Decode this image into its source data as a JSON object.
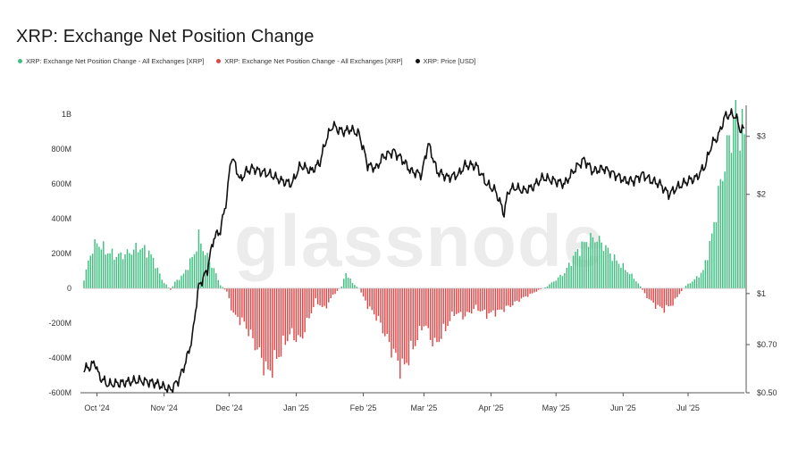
{
  "title": "XRP: Exchange Net Position Change",
  "watermark": "glassnode",
  "legend": [
    {
      "label": "XRP: Exchange Net Position Change - All Exchanges [XRP]",
      "color": "#3ebf80"
    },
    {
      "label": "XRP: Exchange Net Position Change - All Exchanges [XRP]",
      "color": "#e04848"
    },
    {
      "label": "XRP: Price [USD]",
      "color": "#111111"
    }
  ],
  "chart_data": {
    "type": "bar",
    "x_tick_labels": [
      "Oct '24",
      "Nov '24",
      "Dec '24",
      "Jan '25",
      "Feb '25",
      "Mar '25",
      "Apr '25",
      "May '25",
      "Jun '25",
      "Jul '25"
    ],
    "y_left_ticks": [
      "1B",
      "800M",
      "600M",
      "400M",
      "200M",
      "0",
      "-200M",
      "-400M",
      "-600M"
    ],
    "y_left_values": [
      1000000000,
      800000000,
      600000000,
      400000000,
      200000000,
      0,
      -200000000,
      -400000000,
      -600000000
    ],
    "y_left_range": [
      -600000000,
      1000000000
    ],
    "y_right_ticks": [
      "$3",
      "$2",
      "$1",
      "$0.70",
      "$0.50"
    ],
    "y_right_values": [
      3,
      2,
      1,
      0.7,
      0.5
    ],
    "y_right_scale": "log",
    "y_right_range": [
      0.5,
      3.5
    ],
    "net_position_change_keypoints": [
      [
        "2024-09-25",
        50000000
      ],
      [
        "2024-09-28",
        200000000
      ],
      [
        "2024-10-01",
        265000000
      ],
      [
        "2024-10-05",
        215000000
      ],
      [
        "2024-10-10",
        185000000
      ],
      [
        "2024-10-15",
        200000000
      ],
      [
        "2024-10-20",
        235000000
      ],
      [
        "2024-10-25",
        210000000
      ],
      [
        "2024-10-28",
        140000000
      ],
      [
        "2024-10-31",
        50000000
      ],
      [
        "2024-11-02",
        20000000
      ],
      [
        "2024-11-04",
        -10000000
      ],
      [
        "2024-11-06",
        35000000
      ],
      [
        "2024-11-10",
        80000000
      ],
      [
        "2024-11-15",
        200000000
      ],
      [
        "2024-11-17",
        290000000
      ],
      [
        "2024-11-20",
        200000000
      ],
      [
        "2024-11-24",
        110000000
      ],
      [
        "2024-11-27",
        20000000
      ],
      [
        "2024-11-30",
        -20000000
      ],
      [
        "2024-12-03",
        -150000000
      ],
      [
        "2024-12-08",
        -200000000
      ],
      [
        "2024-12-13",
        -320000000
      ],
      [
        "2024-12-19",
        -490000000
      ],
      [
        "2024-12-24",
        -380000000
      ],
      [
        "2024-12-29",
        -260000000
      ],
      [
        "2025-01-03",
        -300000000
      ],
      [
        "2025-01-06",
        -200000000
      ],
      [
        "2025-01-10",
        -70000000
      ],
      [
        "2025-01-14",
        -120000000
      ],
      [
        "2025-01-18",
        -40000000
      ],
      [
        "2025-01-22",
        10000000
      ],
      [
        "2025-01-24",
        90000000
      ],
      [
        "2025-01-27",
        30000000
      ],
      [
        "2025-01-30",
        0
      ],
      [
        "2025-02-03",
        -100000000
      ],
      [
        "2025-02-08",
        -180000000
      ],
      [
        "2025-02-13",
        -320000000
      ],
      [
        "2025-02-19",
        -470000000
      ],
      [
        "2025-02-24",
        -340000000
      ],
      [
        "2025-03-01",
        -200000000
      ],
      [
        "2025-03-06",
        -330000000
      ],
      [
        "2025-03-10",
        -250000000
      ],
      [
        "2025-03-15",
        -140000000
      ],
      [
        "2025-03-20",
        -160000000
      ],
      [
        "2025-03-25",
        -110000000
      ],
      [
        "2025-03-30",
        -150000000
      ],
      [
        "2025-04-05",
        -130000000
      ],
      [
        "2025-04-10",
        -100000000
      ],
      [
        "2025-04-15",
        -60000000
      ],
      [
        "2025-04-20",
        -30000000
      ],
      [
        "2025-04-23",
        -10000000
      ],
      [
        "2025-04-26",
        5000000
      ],
      [
        "2025-04-30",
        40000000
      ],
      [
        "2025-05-05",
        90000000
      ],
      [
        "2025-05-10",
        200000000
      ],
      [
        "2025-05-15",
        270000000
      ],
      [
        "2025-05-19",
        290000000
      ],
      [
        "2025-05-23",
        250000000
      ],
      [
        "2025-05-28",
        170000000
      ],
      [
        "2025-06-02",
        110000000
      ],
      [
        "2025-06-06",
        60000000
      ],
      [
        "2025-06-09",
        10000000
      ],
      [
        "2025-06-12",
        -50000000
      ],
      [
        "2025-06-16",
        -100000000
      ],
      [
        "2025-06-20",
        -120000000
      ],
      [
        "2025-06-24",
        -90000000
      ],
      [
        "2025-06-27",
        -30000000
      ],
      [
        "2025-06-30",
        15000000
      ],
      [
        "2025-07-04",
        50000000
      ],
      [
        "2025-07-08",
        100000000
      ],
      [
        "2025-07-12",
        300000000
      ],
      [
        "2025-07-16",
        600000000
      ],
      [
        "2025-07-20",
        850000000
      ],
      [
        "2025-07-23",
        1000000000
      ],
      [
        "2025-07-26",
        920000000
      ],
      [
        "2025-07-27",
        860000000
      ]
    ],
    "price_keypoints": [
      [
        "2024-09-25",
        0.59
      ],
      [
        "2024-09-28",
        0.6
      ],
      [
        "2024-09-30",
        0.62
      ],
      [
        "2024-10-02",
        0.56
      ],
      [
        "2024-10-06",
        0.53
      ],
      [
        "2024-10-12",
        0.535
      ],
      [
        "2024-10-20",
        0.545
      ],
      [
        "2024-10-28",
        0.535
      ],
      [
        "2024-11-04",
        0.51
      ],
      [
        "2024-11-08",
        0.55
      ],
      [
        "2024-11-11",
        0.62
      ],
      [
        "2024-11-14",
        0.73
      ],
      [
        "2024-11-17",
        1.05
      ],
      [
        "2024-11-21",
        1.18
      ],
      [
        "2024-11-24",
        1.48
      ],
      [
        "2024-11-27",
        1.55
      ],
      [
        "2024-11-30",
        1.95
      ],
      [
        "2024-12-02",
        2.6
      ],
      [
        "2024-12-04",
        2.45
      ],
      [
        "2024-12-06",
        2.2
      ],
      [
        "2024-12-09",
        2.35
      ],
      [
        "2024-12-12",
        2.4
      ],
      [
        "2024-12-15",
        2.35
      ],
      [
        "2024-12-20",
        2.3
      ],
      [
        "2024-12-25",
        2.2
      ],
      [
        "2024-12-30",
        2.15
      ],
      [
        "2025-01-03",
        2.45
      ],
      [
        "2025-01-08",
        2.35
      ],
      [
        "2025-01-12",
        2.5
      ],
      [
        "2025-01-15",
        2.95
      ],
      [
        "2025-01-18",
        3.25
      ],
      [
        "2025-01-20",
        3.15
      ],
      [
        "2025-01-23",
        3.1
      ],
      [
        "2025-01-26",
        3.15
      ],
      [
        "2025-01-30",
        3.05
      ],
      [
        "2025-02-03",
        2.45
      ],
      [
        "2025-02-07",
        2.4
      ],
      [
        "2025-02-10",
        2.6
      ],
      [
        "2025-02-15",
        2.7
      ],
      [
        "2025-02-19",
        2.55
      ],
      [
        "2025-02-23",
        2.35
      ],
      [
        "2025-02-28",
        2.3
      ],
      [
        "2025-03-03",
        2.85
      ],
      [
        "2025-03-07",
        2.35
      ],
      [
        "2025-03-12",
        2.25
      ],
      [
        "2025-03-17",
        2.3
      ],
      [
        "2025-03-20",
        2.45
      ],
      [
        "2025-03-25",
        2.45
      ],
      [
        "2025-03-30",
        2.15
      ],
      [
        "2025-04-03",
        2.05
      ],
      [
        "2025-04-07",
        1.75
      ],
      [
        "2025-04-09",
        2.05
      ],
      [
        "2025-04-12",
        2.1
      ],
      [
        "2025-04-16",
        2.05
      ],
      [
        "2025-04-20",
        2.1
      ],
      [
        "2025-04-25",
        2.25
      ],
      [
        "2025-04-30",
        2.2
      ],
      [
        "2025-05-05",
        2.15
      ],
      [
        "2025-05-10",
        2.4
      ],
      [
        "2025-05-14",
        2.55
      ],
      [
        "2025-05-18",
        2.35
      ],
      [
        "2025-05-23",
        2.4
      ],
      [
        "2025-05-28",
        2.3
      ],
      [
        "2025-06-02",
        2.2
      ],
      [
        "2025-06-06",
        2.2
      ],
      [
        "2025-06-10",
        2.3
      ],
      [
        "2025-06-14",
        2.2
      ],
      [
        "2025-06-18",
        2.15
      ],
      [
        "2025-06-22",
        2.0
      ],
      [
        "2025-06-26",
        2.1
      ],
      [
        "2025-07-01",
        2.2
      ],
      [
        "2025-07-05",
        2.25
      ],
      [
        "2025-07-09",
        2.45
      ],
      [
        "2025-07-12",
        2.85
      ],
      [
        "2025-07-15",
        3.0
      ],
      [
        "2025-07-18",
        3.45
      ],
      [
        "2025-07-21",
        3.5
      ],
      [
        "2025-07-23",
        3.45
      ],
      [
        "2025-07-25",
        3.15
      ],
      [
        "2025-07-27",
        3.15
      ]
    ],
    "x_range": [
      "2024-09-25",
      "2025-07-27"
    ],
    "x_tick_dates": [
      "2024-10-01",
      "2024-11-01",
      "2024-12-01",
      "2025-01-01",
      "2025-02-01",
      "2025-03-01",
      "2025-04-01",
      "2025-05-01",
      "2025-06-01",
      "2025-07-01"
    ],
    "series_colors": {
      "positive": "#3ebf80",
      "negative": "#e04848",
      "price": "#111111"
    },
    "grid": false
  }
}
